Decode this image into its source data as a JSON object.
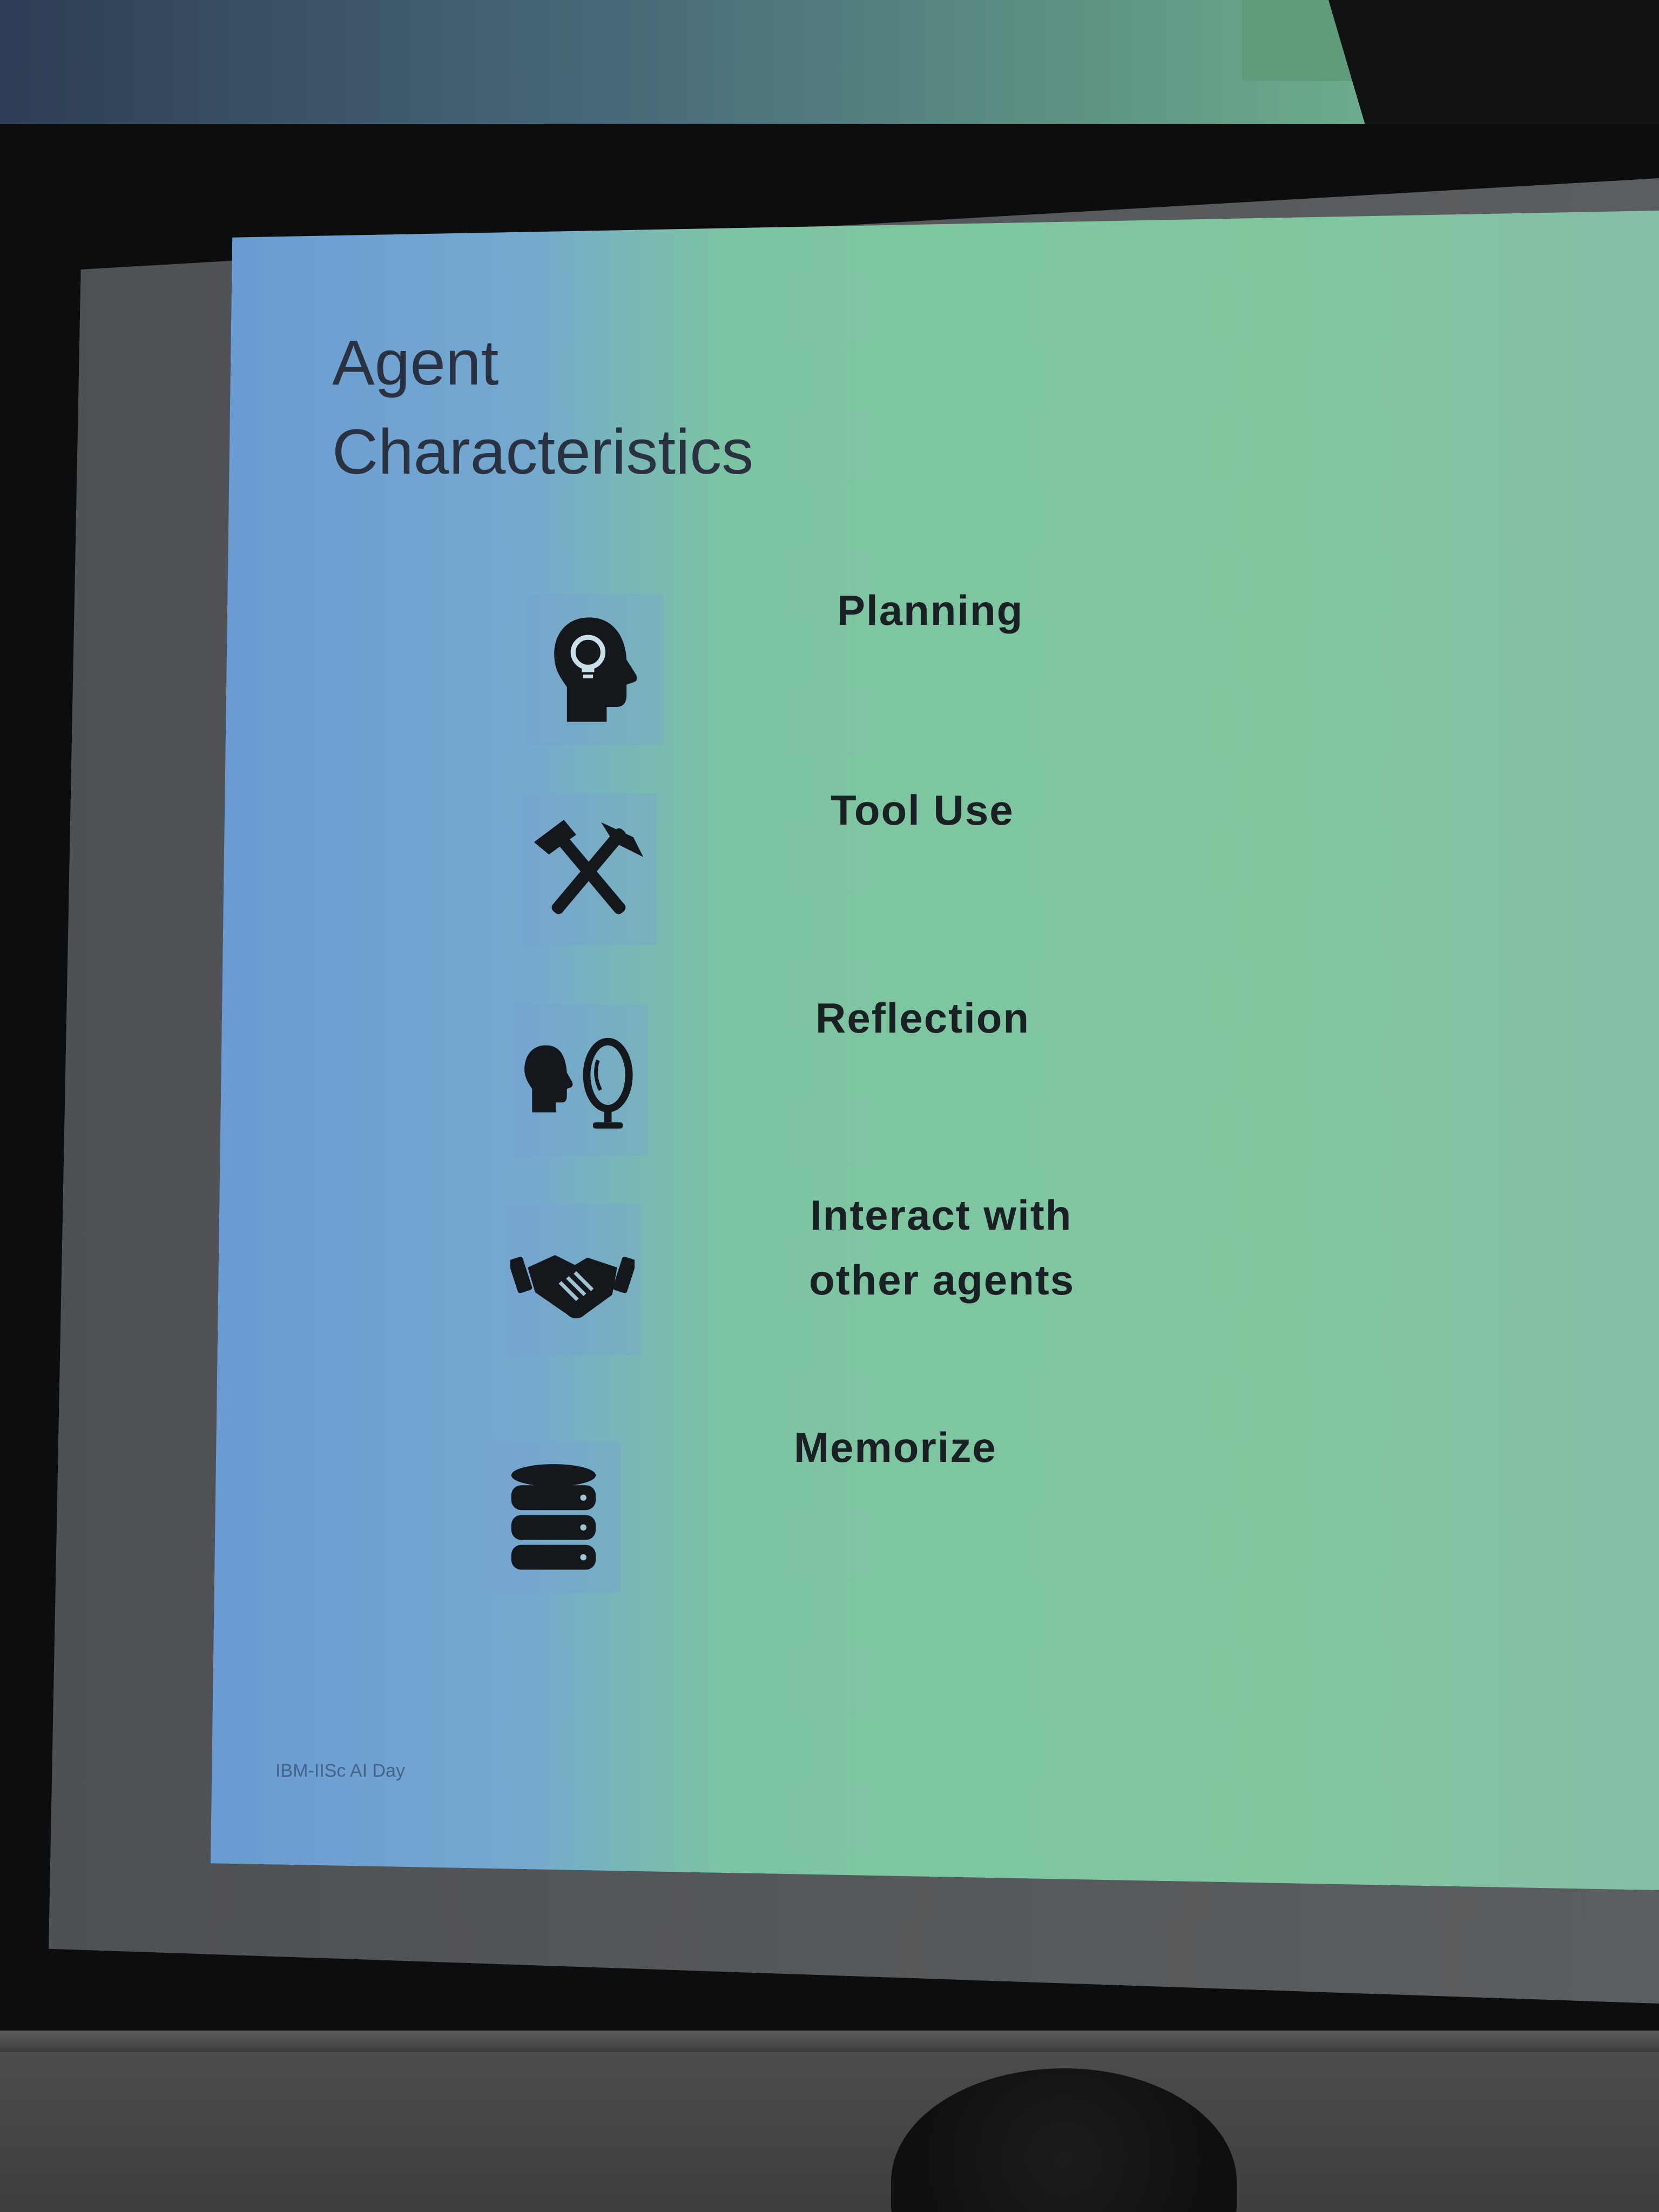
{
  "slide": {
    "title_line1": "Agent",
    "title_line2": "Characteristics",
    "footer": "IBM-IISc AI Day",
    "items": [
      {
        "label": "Planning",
        "icon": "head-lightbulb-icon"
      },
      {
        "label": "Tool Use",
        "icon": "crossed-hammers-icon"
      },
      {
        "label": "Reflection",
        "icon": "head-mirror-icon"
      },
      {
        "label_line1": "Interact with",
        "label_line2": "other agents",
        "icon": "handshake-icon"
      },
      {
        "label": "Memorize",
        "icon": "database-icon"
      }
    ]
  },
  "colors": {
    "slide_left": "#6a9bd3",
    "slide_right": "#80c7a0",
    "icon": "#14181c",
    "text": "#1b2024"
  }
}
